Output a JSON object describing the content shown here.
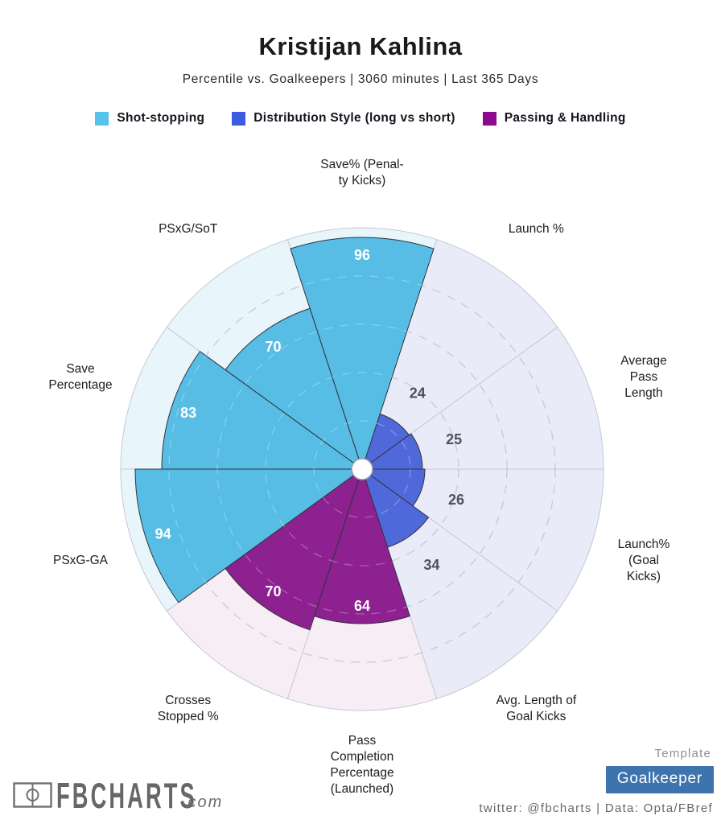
{
  "header": {
    "title": "Kristijan Kahlina",
    "subtitle": "Percentile vs. Goalkeepers | 3060 minutes | Last 365 Days"
  },
  "legend": {
    "items": [
      {
        "label": "Shot-stopping",
        "color": "#55c3ea"
      },
      {
        "label": "Distribution Style (long vs short)",
        "color": "#3d5be1"
      },
      {
        "label": "Passing & Handling",
        "color": "#8b0a8f"
      }
    ]
  },
  "chart_data": {
    "type": "bar",
    "subtype": "polar-pizza-percentile",
    "title": "Kristijan Kahlina",
    "value_range": [
      0,
      100
    ],
    "gridlines": [
      20,
      40,
      60,
      80
    ],
    "grid_style": "dashed",
    "legend_position": "top",
    "groups": [
      {
        "id": "shot-stopping",
        "wedge_color": "#57bde4",
        "bg_color": "#e8f5fb"
      },
      {
        "id": "distribution-style",
        "wedge_color": "#5069da",
        "bg_color": "#e9ebf8"
      },
      {
        "id": "passing-handling",
        "wedge_color": "#8e2190",
        "bg_color": "#f6eef4"
      }
    ],
    "categories": [
      "Save% (Penalty Kicks)",
      "Launch %",
      "Average Pass Length",
      "Launch% (Goal Kicks)",
      "Avg. Length of Goal Kicks",
      "Pass Completion Percentage (Launched)",
      "Crosses Stopped %",
      "PSxG-GA",
      "Save Percentage",
      "PSxG/SoT"
    ],
    "values": [
      96,
      24,
      25,
      26,
      34,
      64,
      70,
      94,
      83,
      70
    ],
    "slices": [
      {
        "label_lines": [
          "Save% (Penal-",
          "ty Kicks)"
        ],
        "value": 96,
        "group": 0
      },
      {
        "label_lines": [
          "Launch %"
        ],
        "value": 24,
        "group": 1
      },
      {
        "label_lines": [
          "Average Pass",
          "Length"
        ],
        "value": 25,
        "group": 1
      },
      {
        "label_lines": [
          "Launch% (Goal",
          "Kicks)"
        ],
        "value": 26,
        "group": 1
      },
      {
        "label_lines": [
          "Avg. Length of",
          "Goal Kicks"
        ],
        "value": 34,
        "group": 1
      },
      {
        "label_lines": [
          "Pass",
          "Completion",
          "Percentage",
          "(Launched)"
        ],
        "value": 64,
        "group": 2
      },
      {
        "label_lines": [
          "Crosses",
          "Stopped %"
        ],
        "value": 70,
        "group": 2
      },
      {
        "label_lines": [
          "PSxG-GA"
        ],
        "value": 94,
        "group": 0
      },
      {
        "label_lines": [
          "Save",
          "Percentage"
        ],
        "value": 83,
        "group": 0
      },
      {
        "label_lines": [
          "PSxG/SoT"
        ],
        "value": 70,
        "group": 0
      }
    ],
    "value_label_colors": {
      "inside": "#ffffff",
      "outside": "#4d525c"
    }
  },
  "footer": {
    "brand_name": "FBCHARTS",
    "brand_suffix": ".com",
    "template_label": "Template",
    "template_value": "Goalkeeper",
    "template_button_color": "#3d74ad",
    "credit": "twitter: @fbcharts | Data: Opta/FBref"
  }
}
